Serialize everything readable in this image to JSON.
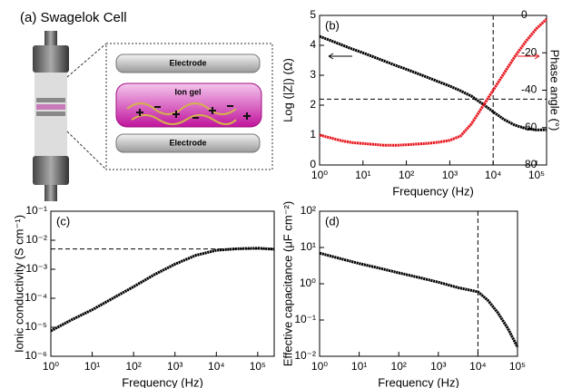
{
  "illustration": {
    "title": "(a) Swagelok Cell",
    "labels": [
      "Electrode",
      "Ion gel",
      "Electrode"
    ]
  },
  "chart_data": [
    {
      "type": "line",
      "panel_label": "(b)",
      "x_label": "Frequency (Hz)",
      "y_label": "Log (|Z|) (Ω)",
      "y2_label": "Phase angle (°)",
      "log_x": true,
      "log_y": false,
      "xlim": [
        1,
        170000
      ],
      "xticks": [
        {
          "value": 1,
          "label": "10⁰"
        },
        {
          "value": 10,
          "label": "10¹"
        },
        {
          "value": 100,
          "label": "10²"
        },
        {
          "value": 1000,
          "label": "10³"
        },
        {
          "value": 10000,
          "label": "10⁴"
        },
        {
          "value": 100000,
          "label": "10⁵"
        }
      ],
      "ylim": [
        0,
        5
      ],
      "yticks": [
        0,
        1,
        2,
        3,
        4,
        5
      ],
      "y2lim": [
        -80,
        0
      ],
      "y2ticks": [
        -80,
        -60,
        -40,
        -20,
        0
      ],
      "hline": 2.2,
      "vline": 10000,
      "x": [
        1,
        1.78,
        3.16,
        5.62,
        10,
        17.8,
        31.6,
        56.2,
        100,
        178,
        316,
        562,
        1000,
        1778,
        3162,
        5623,
        10000,
        17783,
        31623,
        56234,
        100000,
        170000
      ],
      "series": [
        {
          "color": "#000000",
          "values": [
            4.3,
            4.16,
            4.02,
            3.88,
            3.75,
            3.61,
            3.47,
            3.33,
            3.2,
            3.06,
            2.92,
            2.78,
            2.64,
            2.48,
            2.3,
            2.05,
            1.78,
            1.52,
            1.33,
            1.22,
            1.17,
            1.18
          ]
        },
        {
          "color": "#e8141c",
          "axis": "y2",
          "values": [
            -64,
            -65.5,
            -67,
            -68,
            -68.5,
            -69,
            -69.5,
            -69.5,
            -69.2,
            -68.8,
            -68.4,
            -67.8,
            -66.8,
            -64.5,
            -58,
            -49,
            -40,
            -31,
            -22,
            -14,
            -7,
            -2
          ]
        }
      ]
    },
    {
      "type": "line",
      "panel_label": "(c)",
      "x_label": "Frequency (Hz)",
      "y_label": "Ionic conductivity (S cm⁻¹)",
      "log_x": true,
      "log_y": true,
      "xlim": [
        1,
        250000
      ],
      "xticks": [
        {
          "value": 1,
          "label": "10⁰"
        },
        {
          "value": 10,
          "label": "10¹"
        },
        {
          "value": 100,
          "label": "10²"
        },
        {
          "value": 1000,
          "label": "10³"
        },
        {
          "value": 10000,
          "label": "10⁴"
        },
        {
          "value": 100000,
          "label": "10⁵"
        }
      ],
      "ylim": [
        1e-06,
        0.1
      ],
      "yticks": [
        {
          "value": 1e-06,
          "label": "10⁻⁶"
        },
        {
          "value": 1e-05,
          "label": "10⁻⁵"
        },
        {
          "value": 0.0001,
          "label": "10⁻⁴"
        },
        {
          "value": 0.001,
          "label": "10⁻³"
        },
        {
          "value": 0.01,
          "label": "10⁻²"
        },
        {
          "value": 0.1,
          "label": "10⁻¹"
        }
      ],
      "hline": 0.005,
      "x": [
        1,
        3.16,
        10,
        31.6,
        100,
        316,
        1000,
        3162,
        10000,
        31623,
        100000,
        250000
      ],
      "series": [
        {
          "color": "#000000",
          "values": [
            7.5e-06,
            1.8e-05,
            4e-05,
            0.0001,
            0.00025,
            0.00065,
            0.0015,
            0.003,
            0.0045,
            0.0051,
            0.0053,
            0.0049
          ]
        }
      ]
    },
    {
      "type": "line",
      "panel_label": "(d)",
      "x_label": "Frequency (Hz)",
      "y_label": "Effective capacitance (μF cm⁻²)",
      "log_x": true,
      "log_y": true,
      "xlim": [
        1,
        100000
      ],
      "xticks": [
        {
          "value": 1,
          "label": "10⁰"
        },
        {
          "value": 10,
          "label": "10¹"
        },
        {
          "value": 100,
          "label": "10²"
        },
        {
          "value": 1000,
          "label": "10³"
        },
        {
          "value": 10000,
          "label": "10⁴"
        },
        {
          "value": 100000,
          "label": "10⁵"
        }
      ],
      "ylim": [
        0.01,
        100
      ],
      "yticks": [
        {
          "value": 0.01,
          "label": "10⁻²"
        },
        {
          "value": 0.1,
          "label": "10⁻¹"
        },
        {
          "value": 1,
          "label": "10⁰"
        },
        {
          "value": 10,
          "label": "10¹"
        },
        {
          "value": 100,
          "label": "10²"
        }
      ],
      "vline": 10000,
      "x": [
        1,
        3.16,
        10,
        31.6,
        100,
        316,
        1000,
        3162,
        10000,
        17783,
        31623,
        56234,
        100000
      ],
      "series": [
        {
          "color": "#000000",
          "values": [
            7,
            5,
            3.6,
            2.7,
            2.0,
            1.5,
            1.1,
            0.78,
            0.6,
            0.35,
            0.16,
            0.06,
            0.018
          ]
        }
      ]
    }
  ]
}
